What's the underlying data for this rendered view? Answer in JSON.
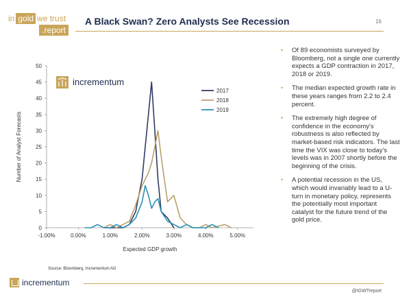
{
  "header": {
    "logo_in": "in",
    "logo_gold": "gold",
    "logo_we_trust": "we trust",
    "logo_report": ".report",
    "title": "A Black Swan? Zero Analysts See Recession",
    "page_number": "16"
  },
  "chart_brand": "incrementum",
  "chart_data": {
    "type": "line",
    "title": "",
    "xlabel": "Expected GDP growth",
    "ylabel": "Number of Analyst Forecasts",
    "xlim": [
      -1.0,
      5.5
    ],
    "ylim": [
      0,
      50
    ],
    "x_ticks": [
      -1.0,
      0.0,
      1.0,
      2.0,
      3.0,
      4.0,
      5.0
    ],
    "x_tick_labels": [
      "-1.00%",
      "0.00%",
      "1.00%",
      "2.00%",
      "3.00%",
      "4.00%",
      "5.00%"
    ],
    "y_ticks": [
      0,
      5,
      10,
      15,
      20,
      25,
      30,
      35,
      40,
      45,
      50
    ],
    "y_tick_labels": [
      "0",
      "5",
      "10",
      "15",
      "20",
      "25",
      "30",
      "35",
      "40",
      "45",
      "50"
    ],
    "grid": false,
    "legend_position": "top-right",
    "series": [
      {
        "name": "2017",
        "color": "#2e3a63",
        "points": [
          [
            0.8,
            0
          ],
          [
            1.0,
            0
          ],
          [
            1.2,
            0
          ],
          [
            1.4,
            0
          ],
          [
            1.6,
            1
          ],
          [
            1.8,
            5
          ],
          [
            2.0,
            15
          ],
          [
            2.1,
            25
          ],
          [
            2.2,
            35
          ],
          [
            2.3,
            45
          ],
          [
            2.4,
            30
          ],
          [
            2.5,
            15
          ],
          [
            2.6,
            5
          ],
          [
            2.8,
            3
          ],
          [
            3.0,
            0
          ]
        ]
      },
      {
        "name": "2018",
        "color": "#b8a06a",
        "points": [
          [
            0.8,
            0
          ],
          [
            1.0,
            1
          ],
          [
            1.2,
            0
          ],
          [
            1.4,
            1
          ],
          [
            1.6,
            2
          ],
          [
            1.8,
            7
          ],
          [
            2.0,
            13
          ],
          [
            2.2,
            17
          ],
          [
            2.3,
            20
          ],
          [
            2.4,
            25
          ],
          [
            2.5,
            30
          ],
          [
            2.6,
            22
          ],
          [
            2.7,
            15
          ],
          [
            2.8,
            8
          ],
          [
            3.0,
            10
          ],
          [
            3.2,
            3
          ],
          [
            3.4,
            1
          ],
          [
            3.6,
            0
          ],
          [
            3.8,
            0
          ],
          [
            4.0,
            1
          ],
          [
            4.2,
            0
          ],
          [
            4.6,
            1
          ],
          [
            4.8,
            0
          ]
        ]
      },
      {
        "name": "2019",
        "color": "#2a8fb5",
        "points": [
          [
            0.2,
            0
          ],
          [
            0.4,
            0
          ],
          [
            0.6,
            1
          ],
          [
            0.8,
            0
          ],
          [
            1.0,
            0
          ],
          [
            1.2,
            1
          ],
          [
            1.4,
            0
          ],
          [
            1.6,
            1
          ],
          [
            1.8,
            3
          ],
          [
            2.0,
            8
          ],
          [
            2.1,
            13
          ],
          [
            2.2,
            10
          ],
          [
            2.3,
            6
          ],
          [
            2.4,
            8
          ],
          [
            2.5,
            9
          ],
          [
            2.6,
            5
          ],
          [
            2.8,
            2
          ],
          [
            3.0,
            1
          ],
          [
            3.2,
            0
          ],
          [
            3.4,
            1
          ],
          [
            3.6,
            0
          ],
          [
            3.8,
            0
          ],
          [
            4.0,
            0
          ],
          [
            4.2,
            1
          ],
          [
            4.4,
            0
          ]
        ]
      }
    ]
  },
  "bullets": [
    "Of 89 economists surveyed by Bloomberg, not a single one currently expects a GDP contraction in 2017, 2018 or 2019.",
    "The median expected growth rate in these years ranges from 2.2 to 2.4 percent.",
    "The extremely high degree of confidence in the economy's robustness is also reflected by market-based risk indicators. The last time the VIX was close to today's levels was in 2007 shortly before the beginning of the crisis.",
    "A potential recession in the US, which would invariably lead to a U-turn in monetary policy, represents the potentially most important catalyst for the future trend of the gold price."
  ],
  "source": "Source: Bloomberg, Incrementum AG",
  "footer": {
    "brand": "incrementum",
    "handle": "@IGWTreport"
  },
  "colors": {
    "gold": "#c9a55a",
    "navy": "#1f2d4f"
  }
}
